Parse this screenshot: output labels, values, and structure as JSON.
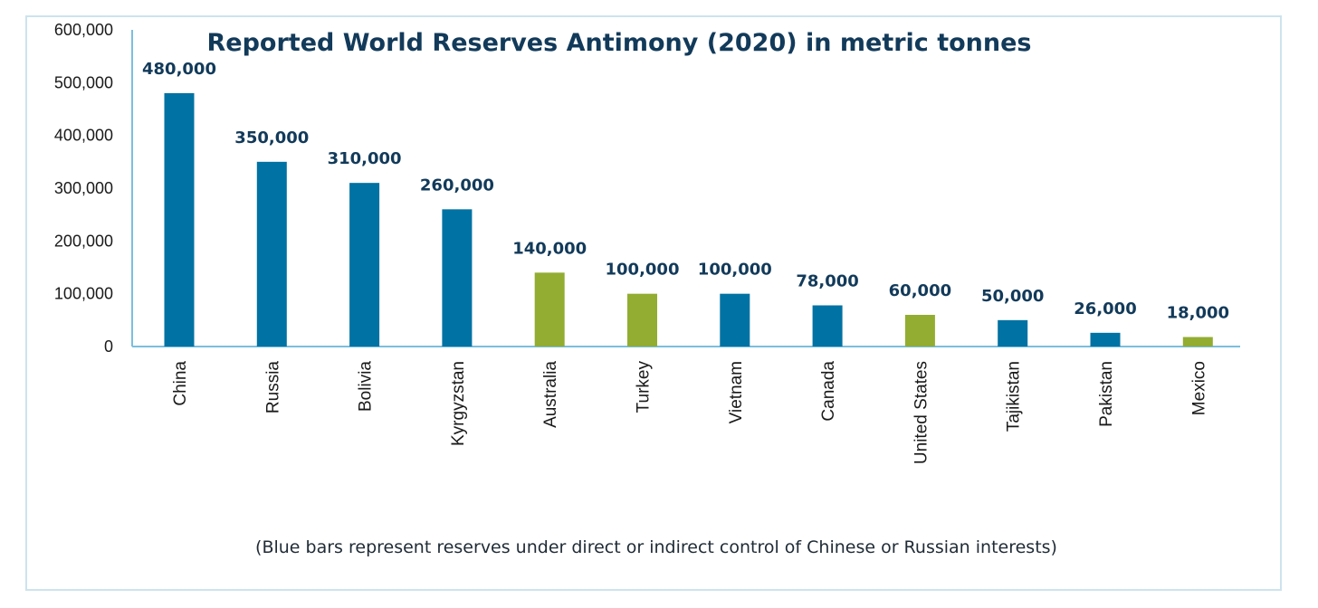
{
  "chart_data": {
    "type": "bar",
    "title": "Reported World Reserves Antimony (2020) in metric tonnes",
    "xlabel": "",
    "ylabel": "",
    "ylim": [
      0,
      600000
    ],
    "y_ticks": [
      0,
      100000,
      200000,
      300000,
      400000,
      500000,
      600000
    ],
    "y_tick_labels": [
      "0",
      "100,000",
      "200,000",
      "300,000",
      "400,000",
      "500,000",
      "600,000"
    ],
    "categories": [
      "China",
      "Russia",
      "Bolivia",
      "Kyrgyzstan",
      "Australia",
      "Turkey",
      "Vietnam",
      "Canada",
      "United States",
      "Tajikistan",
      "Pakistan",
      "Mexico"
    ],
    "values": [
      480000,
      350000,
      310000,
      260000,
      140000,
      100000,
      100000,
      78000,
      60000,
      50000,
      26000,
      18000
    ],
    "data_labels": [
      "480,000",
      "350,000",
      "310,000",
      "260,000",
      "140,000",
      "100,000",
      "100,000",
      "78,000",
      "60,000",
      "50,000",
      "26,000",
      "18,000"
    ],
    "bar_colors": [
      "#0072a3",
      "#0072a3",
      "#0072a3",
      "#0072a3",
      "#92ad31",
      "#92ad31",
      "#0072a3",
      "#0072a3",
      "#92ad31",
      "#0072a3",
      "#0072a3",
      "#92ad31"
    ],
    "footnote": "(Blue bars represent reserves under direct or indirect control of Chinese or Russian interests)",
    "grid": false,
    "legend": "none"
  },
  "colors": {
    "blue_bar": "#0072a3",
    "green_bar": "#92ad31",
    "title": "#123a5a",
    "axis": "#7bbfde",
    "frame_border": "#cde3ee"
  }
}
